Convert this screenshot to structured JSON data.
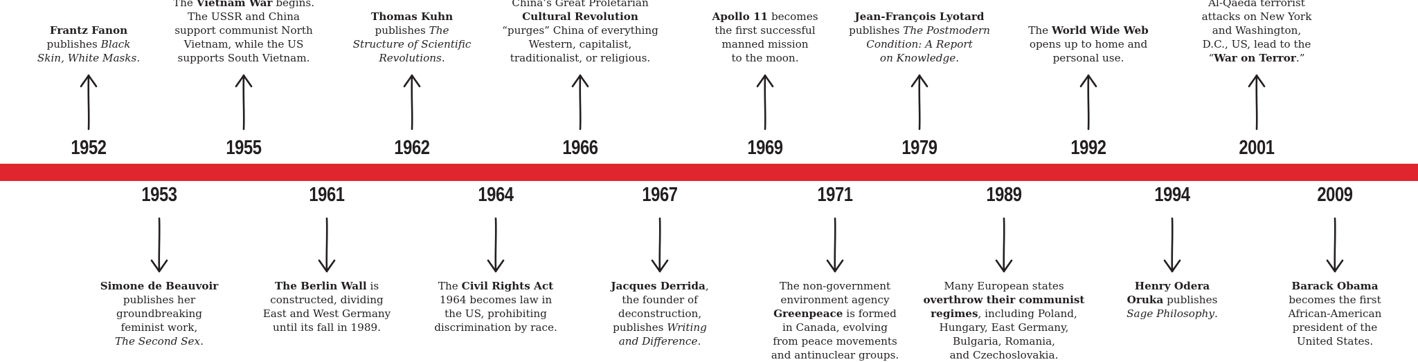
{
  "above": [
    {
      "year": "1952",
      "lines": [
        [
          {
            "t": "Frantz Fanon",
            "s": "b"
          }
        ],
        [
          {
            "t": "publishes "
          },
          {
            "t": "Black",
            "s": "i"
          }
        ],
        [
          {
            "t": "Skin, White Masks",
            "s": "i"
          },
          {
            "t": "."
          }
        ]
      ]
    },
    {
      "year": "1955",
      "lines": [
        [
          {
            "t": "The "
          },
          {
            "t": "Vietnam War",
            "s": "b"
          },
          {
            "t": " begins."
          }
        ],
        [
          {
            "t": "The USSR and China"
          }
        ],
        [
          {
            "t": "support communist North"
          }
        ],
        [
          {
            "t": "Vietnam, while the US"
          }
        ],
        [
          {
            "t": "supports South Vietnam."
          }
        ]
      ]
    },
    {
      "year": "1962",
      "lines": [
        [
          {
            "t": "Thomas Kuhn",
            "s": "b"
          }
        ],
        [
          {
            "t": "publishes "
          },
          {
            "t": "The",
            "s": "i"
          }
        ],
        [
          {
            "t": "Structure of Scientific",
            "s": "i"
          }
        ],
        [
          {
            "t": "Revolutions",
            "s": "i"
          },
          {
            "t": "."
          }
        ]
      ]
    },
    {
      "year": "1966",
      "lines": [
        [
          {
            "t": "China’s Great Proletarian"
          }
        ],
        [
          {
            "t": "Cultural Revolution",
            "s": "b"
          }
        ],
        [
          {
            "t": "“purges” China of everything"
          }
        ],
        [
          {
            "t": "Western, capitalist,"
          }
        ],
        [
          {
            "t": "traditionalist, or religious."
          }
        ]
      ]
    },
    {
      "year": "1969",
      "lines": [
        [
          {
            "t": "Apollo 11",
            "s": "b"
          },
          {
            "t": " becomes"
          }
        ],
        [
          {
            "t": "the first successful"
          }
        ],
        [
          {
            "t": "manned mission"
          }
        ],
        [
          {
            "t": "to the moon."
          }
        ]
      ]
    },
    {
      "year": "1979",
      "lines": [
        [
          {
            "t": "Jean-François Lyotard",
            "s": "b"
          }
        ],
        [
          {
            "t": "publishes "
          },
          {
            "t": "The Postmodern",
            "s": "i"
          }
        ],
        [
          {
            "t": "Condition: A Report",
            "s": "i"
          }
        ],
        [
          {
            "t": "on Knowledge",
            "s": "i"
          },
          {
            "t": "."
          }
        ]
      ]
    },
    {
      "year": "1992",
      "lines": [
        [
          {
            "t": "The "
          },
          {
            "t": "World Wide Web",
            "s": "b"
          }
        ],
        [
          {
            "t": "opens up to home and"
          }
        ],
        [
          {
            "t": "personal use."
          }
        ]
      ]
    },
    {
      "year": "2001",
      "lines": [
        [
          {
            "t": "Al-Qaeda terrorist"
          }
        ],
        [
          {
            "t": "attacks on New York"
          }
        ],
        [
          {
            "t": "and Washington,"
          }
        ],
        [
          {
            "t": "D.C., US, lead to the"
          }
        ],
        [
          {
            "t": "“"
          },
          {
            "t": "War on Terror",
            "s": "b"
          },
          {
            "t": ".”"
          }
        ]
      ]
    }
  ],
  "below": [
    {
      "year": "1953",
      "lines": [
        [
          {
            "t": "Simone de Beauvoir",
            "s": "b"
          }
        ],
        [
          {
            "t": "publishes her"
          }
        ],
        [
          {
            "t": "groundbreaking"
          }
        ],
        [
          {
            "t": "feminist work,"
          }
        ],
        [
          {
            "t": "The Second Sex",
            "s": "i"
          },
          {
            "t": "."
          }
        ]
      ]
    },
    {
      "year": "1961",
      "lines": [
        [
          {
            "t": "The Berlin Wall",
            "s": "b"
          },
          {
            "t": " is"
          }
        ],
        [
          {
            "t": "constructed, dividing"
          }
        ],
        [
          {
            "t": "East and West Germany"
          }
        ],
        [
          {
            "t": "until its fall in 1989."
          }
        ]
      ]
    },
    {
      "year": "1964",
      "lines": [
        [
          {
            "t": "The "
          },
          {
            "t": "Civil Rights Act",
            "s": "b"
          }
        ],
        [
          {
            "t": "1964 becomes law in"
          }
        ],
        [
          {
            "t": "the US, prohibiting"
          }
        ],
        [
          {
            "t": "discrimination by race."
          }
        ]
      ]
    },
    {
      "year": "1967",
      "lines": [
        [
          {
            "t": "Jacques Derrida",
            "s": "b"
          },
          {
            "t": ","
          }
        ],
        [
          {
            "t": "the founder of"
          }
        ],
        [
          {
            "t": "deconstruction,"
          }
        ],
        [
          {
            "t": "publishes "
          },
          {
            "t": "Writing",
            "s": "i"
          }
        ],
        [
          {
            "t": "and Difference",
            "s": "i"
          },
          {
            "t": "."
          }
        ]
      ]
    },
    {
      "year": "1971",
      "lines": [
        [
          {
            "t": "The non-government"
          }
        ],
        [
          {
            "t": "environment agency"
          }
        ],
        [
          {
            "t": "Greenpeace",
            "s": "b"
          },
          {
            "t": " is formed"
          }
        ],
        [
          {
            "t": "in Canada, evolving"
          }
        ],
        [
          {
            "t": "from peace movements"
          }
        ],
        [
          {
            "t": "and antinuclear groups."
          }
        ]
      ]
    },
    {
      "year": "1989",
      "lines": [
        [
          {
            "t": "Many European states"
          }
        ],
        [
          {
            "t": "overthrow their communist",
            "s": "b"
          }
        ],
        [
          {
            "t": "regimes",
            "s": "b"
          },
          {
            "t": ", including Poland,"
          }
        ],
        [
          {
            "t": "Hungary, East Germany,"
          }
        ],
        [
          {
            "t": "Bulgaria, Romania,"
          }
        ],
        [
          {
            "t": "and Czechoslovakia."
          }
        ]
      ]
    },
    {
      "year": "1994",
      "lines": [
        [
          {
            "t": "Henry Odera",
            "s": "b"
          }
        ],
        [
          {
            "t": "Oruka",
            "s": "b"
          },
          {
            "t": " publishes"
          }
        ],
        [
          {
            "t": "Sage Philosophy",
            "s": "i"
          },
          {
            "t": "."
          }
        ]
      ]
    },
    {
      "year": "2009",
      "lines": [
        [
          {
            "t": "Barack Obama",
            "s": "b"
          }
        ],
        [
          {
            "t": "becomes the first"
          }
        ],
        [
          {
            "t": "African-American"
          }
        ],
        [
          {
            "t": "president of the"
          }
        ],
        [
          {
            "t": "United States."
          }
        ]
      ]
    }
  ],
  "colors": {
    "band": "#e1252e",
    "ink": "#231f20"
  }
}
